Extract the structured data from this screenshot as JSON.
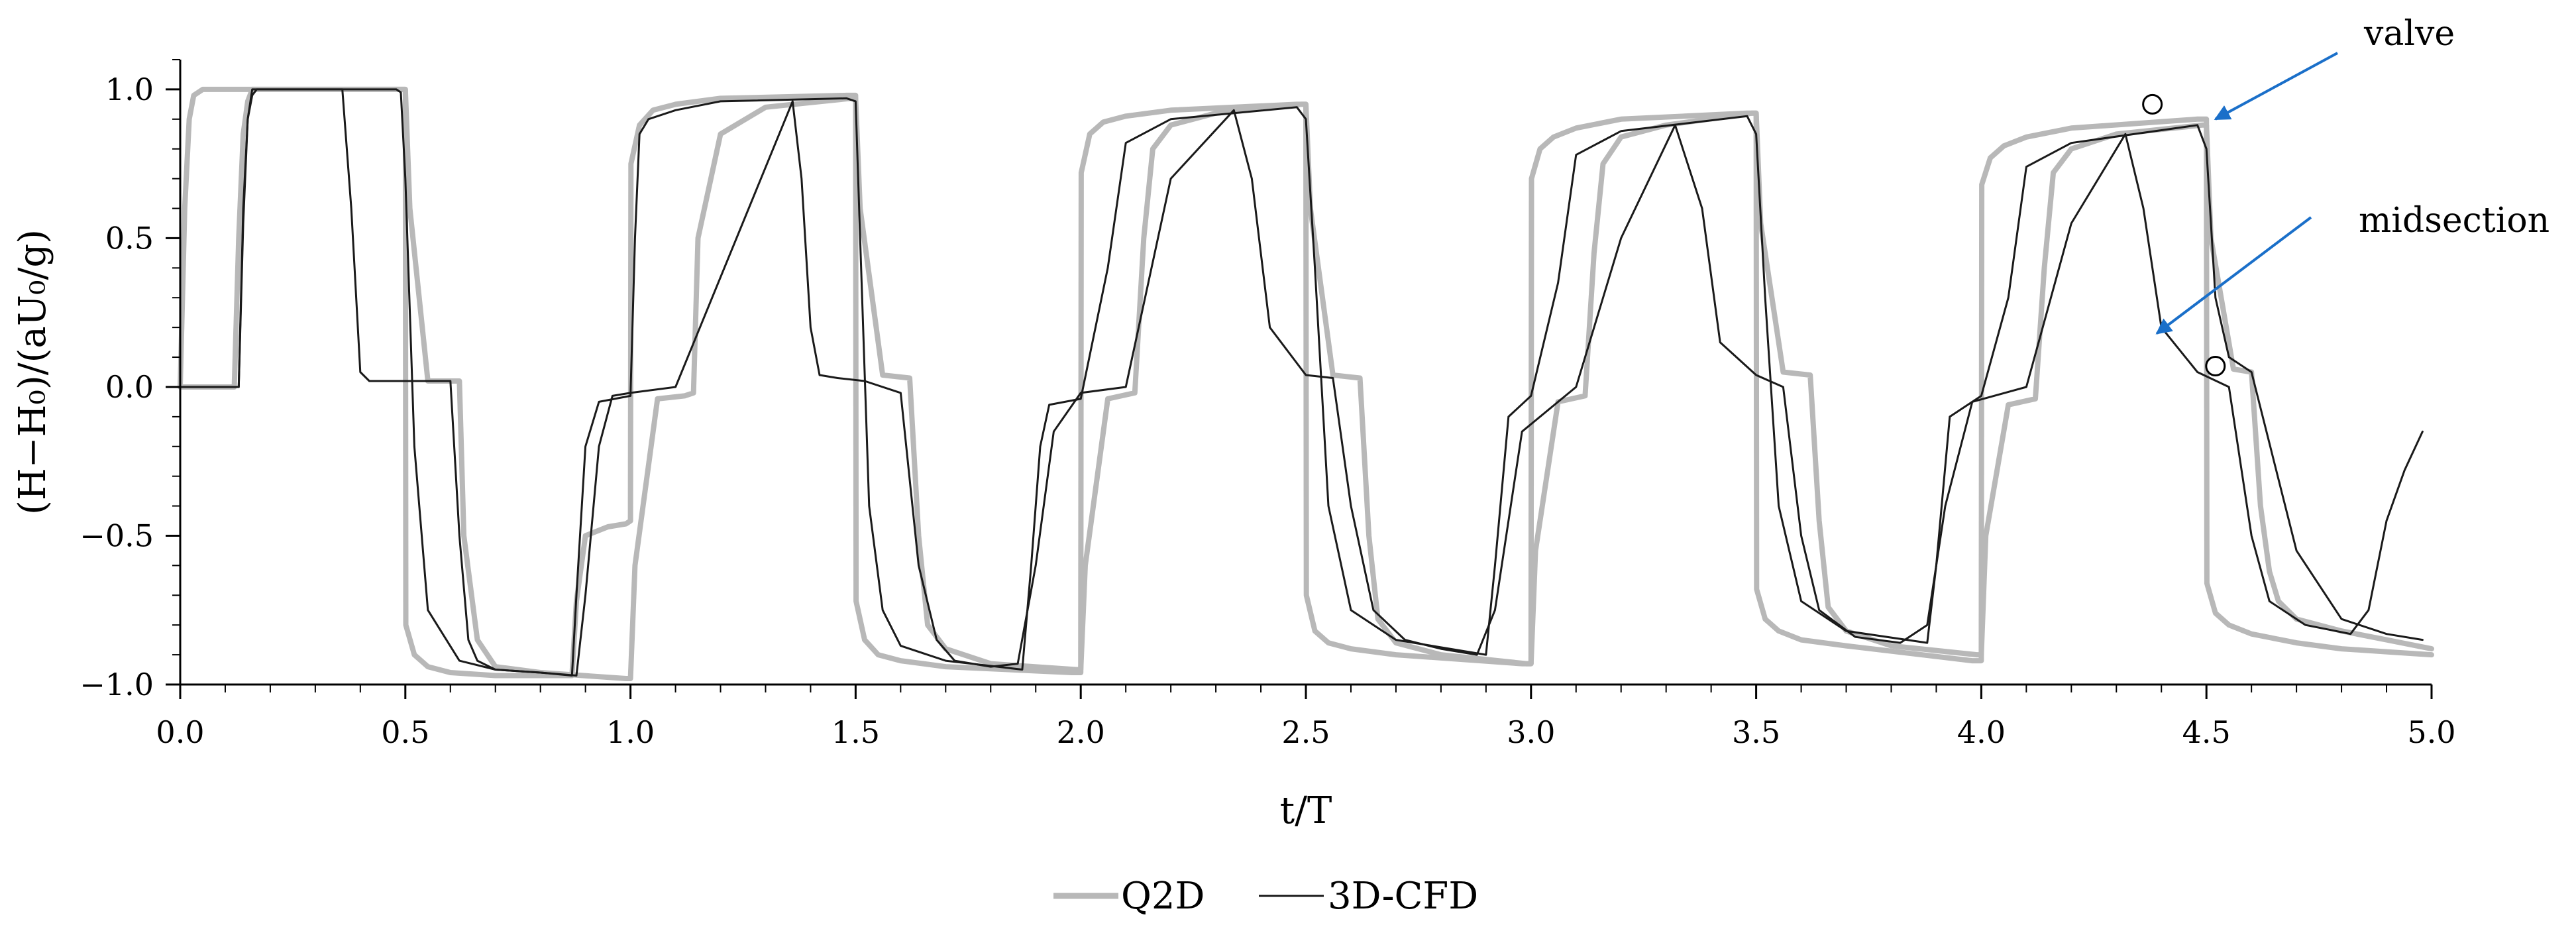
{
  "chart_data": {
    "type": "line",
    "xlabel": "t/T",
    "ylabel": "(H−H₀)/(aU₀/g)",
    "xlim": [
      0,
      5
    ],
    "ylim": [
      -1,
      1.1
    ],
    "x_ticks": [
      "0.0",
      "0.5",
      "1.0",
      "1.5",
      "2.0",
      "2.5",
      "3.0",
      "3.5",
      "4.0",
      "4.5",
      "5.0"
    ],
    "y_ticks": [
      "1.0",
      "0.5",
      "0.0",
      "−0.5",
      "−1.0"
    ],
    "grid": false,
    "legend_position": "bottom-center",
    "annotations": [
      {
        "text": "valve",
        "arrow_tip": [
          4.52,
          0.9
        ]
      },
      {
        "text": "midsection",
        "arrow_tip": [
          4.39,
          0.18
        ]
      }
    ],
    "markers": [
      {
        "x": 4.38,
        "y": 0.95
      },
      {
        "x": 4.52,
        "y": 0.07
      }
    ],
    "series": [
      {
        "name": "Q2D",
        "color": "#b8b8b8",
        "style": "thick",
        "curves": [
          {
            "x": [
              0.0,
              0.01,
              0.02,
              0.03,
              0.05,
              0.48,
              0.5,
              0.501,
              0.52,
              0.55,
              0.6,
              0.7,
              0.87,
              0.88,
              0.9,
              0.95,
              0.99,
              1.0,
              1.001,
              1.02,
              1.05,
              1.1,
              1.2,
              1.48,
              1.5,
              1.501,
              1.52,
              1.55,
              1.6,
              1.7,
              1.98,
              2.0,
              2.001,
              2.02,
              2.05,
              2.1,
              2.2,
              2.48,
              2.5,
              2.501,
              2.52,
              2.55,
              2.6,
              2.7,
              2.98,
              3.0,
              3.001,
              3.02,
              3.05,
              3.1,
              3.2,
              3.48,
              3.5,
              3.501,
              3.52,
              3.55,
              3.6,
              3.7,
              3.98,
              4.0,
              4.001,
              4.02,
              4.05,
              4.1,
              4.2,
              4.48,
              4.5,
              4.501,
              4.52,
              4.55,
              4.6,
              4.7,
              4.8,
              4.9,
              5.0
            ],
            "y": [
              0.0,
              0.6,
              0.9,
              0.98,
              1.0,
              1.0,
              1.0,
              -0.8,
              -0.9,
              -0.94,
              -0.96,
              -0.97,
              -0.97,
              -0.72,
              -0.5,
              -0.47,
              -0.46,
              -0.45,
              0.75,
              0.88,
              0.93,
              0.95,
              0.97,
              0.98,
              0.98,
              -0.72,
              -0.85,
              -0.9,
              -0.92,
              -0.94,
              -0.96,
              -0.96,
              0.72,
              0.85,
              0.89,
              0.91,
              0.93,
              0.95,
              0.95,
              -0.7,
              -0.82,
              -0.86,
              -0.88,
              -0.9,
              -0.93,
              -0.93,
              0.7,
              0.8,
              0.84,
              0.87,
              0.9,
              0.92,
              0.92,
              -0.68,
              -0.78,
              -0.82,
              -0.85,
              -0.87,
              -0.92,
              -0.92,
              0.68,
              0.77,
              0.81,
              0.84,
              0.87,
              0.9,
              0.9,
              -0.66,
              -0.76,
              -0.8,
              -0.83,
              -0.86,
              -0.88,
              -0.89,
              -0.9
            ]
          },
          {
            "x": [
              0.0,
              0.12,
              0.13,
              0.14,
              0.15,
              0.16,
              0.5,
              0.51,
              0.55,
              0.6,
              0.62,
              0.63,
              0.66,
              0.7,
              0.8,
              0.99,
              1.0,
              1.01,
              1.06,
              1.12,
              1.14,
              1.15,
              1.2,
              1.3,
              1.49,
              1.5,
              1.51,
              1.56,
              1.62,
              1.64,
              1.66,
              1.7,
              1.8,
              1.99,
              2.0,
              2.01,
              2.06,
              2.12,
              2.14,
              2.16,
              2.2,
              2.3,
              2.49,
              2.5,
              2.51,
              2.56,
              2.62,
              2.64,
              2.66,
              2.7,
              2.8,
              2.99,
              3.0,
              3.01,
              3.06,
              3.12,
              3.14,
              3.16,
              3.2,
              3.3,
              3.49,
              3.5,
              3.51,
              3.56,
              3.62,
              3.64,
              3.66,
              3.7,
              3.8,
              3.99,
              4.0,
              4.01,
              4.06,
              4.12,
              4.14,
              4.16,
              4.2,
              4.3,
              4.49,
              4.5,
              4.51,
              4.56,
              4.6,
              4.62,
              4.64,
              4.66,
              4.7,
              4.8,
              4.9,
              5.0
            ],
            "y": [
              0.0,
              0.0,
              0.5,
              0.85,
              0.96,
              1.0,
              1.0,
              0.6,
              0.02,
              0.02,
              0.02,
              -0.5,
              -0.85,
              -0.94,
              -0.96,
              -0.98,
              -0.98,
              -0.6,
              -0.04,
              -0.03,
              -0.02,
              0.5,
              0.85,
              0.94,
              0.97,
              0.97,
              0.6,
              0.04,
              0.03,
              -0.5,
              -0.8,
              -0.88,
              -0.93,
              -0.95,
              -0.95,
              -0.6,
              -0.04,
              -0.02,
              0.5,
              0.8,
              0.88,
              0.92,
              0.95,
              0.95,
              0.6,
              0.04,
              0.03,
              -0.5,
              -0.78,
              -0.86,
              -0.9,
              -0.93,
              -0.93,
              -0.55,
              -0.05,
              -0.03,
              0.45,
              0.75,
              0.84,
              0.88,
              0.92,
              0.92,
              0.55,
              0.05,
              0.04,
              -0.45,
              -0.74,
              -0.82,
              -0.87,
              -0.9,
              -0.9,
              -0.5,
              -0.06,
              -0.04,
              0.4,
              0.72,
              0.8,
              0.85,
              0.88,
              0.88,
              0.5,
              0.06,
              0.05,
              -0.4,
              -0.62,
              -0.72,
              -0.78,
              -0.82,
              -0.85,
              -0.88
            ]
          }
        ]
      },
      {
        "name": "3D-CFD",
        "color": "#1a1a1a",
        "style": "thin",
        "curves": [
          {
            "x": [
              0.0,
              0.13,
              0.14,
              0.15,
              0.16,
              0.17,
              0.36,
              0.38,
              0.4,
              0.42,
              0.6,
              0.62,
              0.64,
              0.66,
              0.7,
              0.8,
              0.88,
              0.9,
              0.93,
              0.96,
              1.0,
              1.1,
              1.36,
              1.38,
              1.4,
              1.42,
              1.46,
              1.52,
              1.6,
              1.64,
              1.68,
              1.72,
              1.8,
              1.86,
              1.9,
              1.94,
              2.0,
              2.1,
              2.2,
              2.34,
              2.38,
              2.42,
              2.5,
              2.56,
              2.6,
              2.65,
              2.72,
              2.8,
              2.88,
              2.92,
              2.98,
              3.1,
              3.2,
              3.32,
              3.38,
              3.42,
              3.5,
              3.56,
              3.6,
              3.64,
              3.72,
              3.82,
              3.88,
              3.92,
              3.98,
              4.1,
              4.2,
              4.32,
              4.36,
              4.4,
              4.48,
              4.55,
              4.6,
              4.64,
              4.72,
              4.82,
              4.86,
              4.9,
              4.94,
              4.98
            ],
            "y": [
              0.0,
              0.0,
              0.6,
              0.9,
              0.98,
              1.0,
              1.0,
              0.6,
              0.05,
              0.02,
              0.02,
              -0.5,
              -0.85,
              -0.92,
              -0.95,
              -0.96,
              -0.97,
              -0.7,
              -0.2,
              -0.03,
              -0.02,
              0.0,
              0.96,
              0.7,
              0.2,
              0.04,
              0.03,
              0.02,
              -0.02,
              -0.6,
              -0.85,
              -0.92,
              -0.94,
              -0.93,
              -0.6,
              -0.15,
              -0.02,
              0.0,
              0.7,
              0.93,
              0.7,
              0.2,
              0.04,
              0.03,
              -0.4,
              -0.75,
              -0.85,
              -0.88,
              -0.9,
              -0.75,
              -0.15,
              0.0,
              0.5,
              0.88,
              0.6,
              0.15,
              0.04,
              0.0,
              -0.5,
              -0.75,
              -0.84,
              -0.86,
              -0.8,
              -0.4,
              -0.05,
              0.0,
              0.55,
              0.85,
              0.6,
              0.2,
              0.05,
              0.0,
              -0.5,
              -0.72,
              -0.8,
              -0.83,
              -0.75,
              -0.45,
              -0.28,
              -0.15
            ]
          },
          {
            "x": [
              0.0,
              0.13,
              0.14,
              0.15,
              0.16,
              0.48,
              0.49,
              0.5,
              0.52,
              0.55,
              0.62,
              0.7,
              0.8,
              0.87,
              0.88,
              0.9,
              0.93,
              1.0,
              1.01,
              1.02,
              1.04,
              1.1,
              1.2,
              1.48,
              1.5,
              1.51,
              1.53,
              1.56,
              1.6,
              1.7,
              1.87,
              1.89,
              1.91,
              1.93,
              2.0,
              2.06,
              2.1,
              2.2,
              2.48,
              2.5,
              2.52,
              2.55,
              2.6,
              2.7,
              2.9,
              2.92,
              2.95,
              3.0,
              3.06,
              3.1,
              3.2,
              3.48,
              3.5,
              3.52,
              3.55,
              3.6,
              3.7,
              3.88,
              3.9,
              3.93,
              4.0,
              4.06,
              4.1,
              4.2,
              4.48,
              4.5,
              4.52,
              4.55,
              4.6,
              4.7,
              4.8,
              4.9,
              4.98
            ],
            "y": [
              0.0,
              0.0,
              0.55,
              0.9,
              1.0,
              1.0,
              0.99,
              0.7,
              -0.2,
              -0.75,
              -0.92,
              -0.95,
              -0.96,
              -0.97,
              -0.7,
              -0.2,
              -0.05,
              -0.03,
              0.5,
              0.85,
              0.9,
              0.93,
              0.96,
              0.97,
              0.96,
              0.5,
              -0.4,
              -0.75,
              -0.87,
              -0.92,
              -0.95,
              -0.6,
              -0.2,
              -0.06,
              -0.04,
              0.4,
              0.82,
              0.9,
              0.94,
              0.9,
              0.4,
              -0.4,
              -0.75,
              -0.85,
              -0.9,
              -0.6,
              -0.1,
              -0.03,
              0.35,
              0.78,
              0.86,
              0.91,
              0.85,
              0.3,
              -0.4,
              -0.72,
              -0.82,
              -0.86,
              -0.6,
              -0.1,
              -0.03,
              0.3,
              0.74,
              0.82,
              0.88,
              0.8,
              0.3,
              0.1,
              0.05,
              -0.55,
              -0.78,
              -0.83,
              -0.85
            ]
          }
        ]
      }
    ]
  }
}
